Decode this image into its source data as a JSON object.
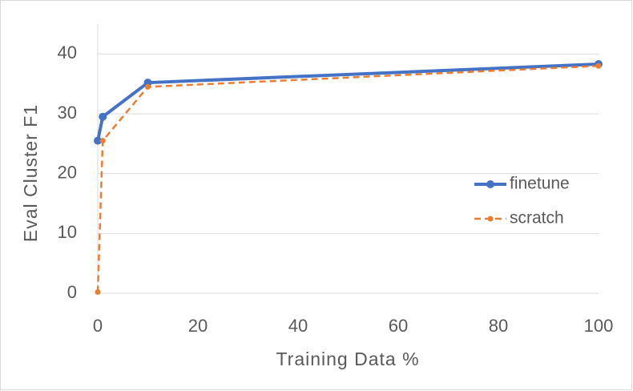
{
  "chart_data": {
    "type": "line",
    "x_label": "Training Data %",
    "y_label": "Eval Cluster F1",
    "series": [
      {
        "name": "finetune",
        "color": "#4472c4",
        "dash": "solid",
        "x": [
          0,
          1,
          10,
          100
        ],
        "values": [
          25.5,
          29.5,
          35.2,
          38.3
        ]
      },
      {
        "name": "scratch",
        "color": "#ed7d31",
        "dash": "dashed",
        "x": [
          0,
          1,
          10,
          100
        ],
        "values": [
          0.2,
          25.5,
          34.5,
          38
        ]
      }
    ],
    "xlim": [
      0,
      100
    ],
    "xticks": [
      0,
      20,
      40,
      60,
      80,
      100
    ],
    "ylim": [
      0,
      45
    ],
    "yticks": [
      0,
      10,
      20,
      30,
      40
    ],
    "grid": true,
    "legend": "right"
  }
}
